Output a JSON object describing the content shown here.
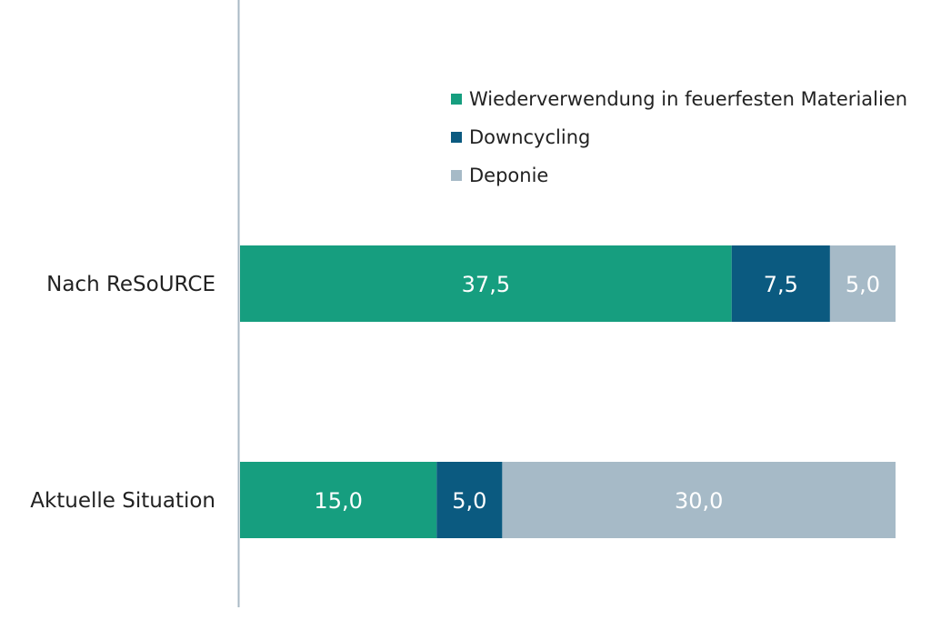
{
  "chart_data": {
    "type": "bar",
    "orientation": "horizontal",
    "stacked": true,
    "categories": [
      "Nach ReSoURCE",
      "Aktuelle Situation"
    ],
    "series": [
      {
        "name": "Wiederverwendung in feuerfesten Materialien",
        "values": [
          37.5,
          15.0
        ],
        "labels": [
          "37,5",
          "15,0"
        ],
        "color": "#169e7f"
      },
      {
        "name": "Downcycling",
        "values": [
          7.5,
          5.0
        ],
        "labels": [
          "7,5",
          "5,0"
        ],
        "color": "#0b5a80"
      },
      {
        "name": "Deponie",
        "values": [
          5.0,
          30.0
        ],
        "labels": [
          "5,0",
          "30,0"
        ],
        "color": "#a6bac7"
      }
    ],
    "xlim": [
      0,
      50
    ],
    "legend_position": "top-right",
    "grid": false
  }
}
